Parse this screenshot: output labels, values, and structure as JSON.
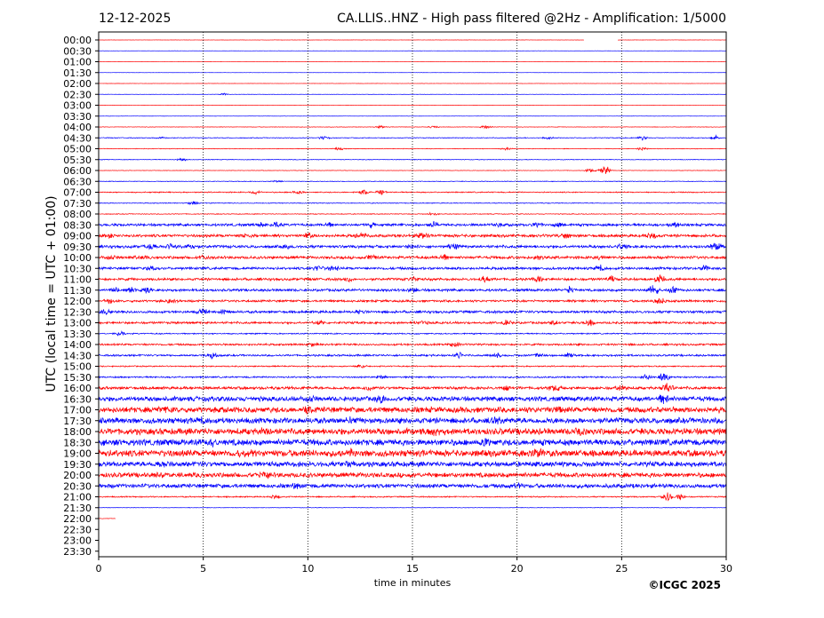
{
  "chart_data": {
    "type": "line",
    "subtype": "helicorder",
    "title_left": "12-12-2025",
    "title": "CA.LLIS..HNZ - High pass filtered @2Hz - Amplification: 1/5000",
    "xlabel": "time in minutes",
    "ylabel": "UTC (local time = UTC + 01:00)",
    "copyright": "©ICGC 2025",
    "xlim": [
      0,
      30
    ],
    "x_ticks": [
      0,
      5,
      10,
      15,
      20,
      25,
      30
    ],
    "x_tick_labels": [
      "0",
      "5",
      "10",
      "15",
      "20",
      "25",
      "30"
    ],
    "vertical_gridlines": [
      5,
      10,
      15,
      20,
      25
    ],
    "row_labels": [
      "00:00",
      "00:30",
      "01:00",
      "01:30",
      "02:00",
      "02:30",
      "03:00",
      "03:30",
      "04:00",
      "04:30",
      "05:00",
      "05:30",
      "06:00",
      "06:30",
      "07:00",
      "07:30",
      "08:00",
      "08:30",
      "09:00",
      "09:30",
      "10:00",
      "10:30",
      "11:00",
      "11:30",
      "12:00",
      "12:30",
      "13:00",
      "13:30",
      "14:00",
      "14:30",
      "15:00",
      "15:30",
      "16:00",
      "16:30",
      "17:00",
      "17:30",
      "18:00",
      "18:30",
      "19:00",
      "19:30",
      "20:00",
      "20:30",
      "21:00",
      "21:30",
      "22:00",
      "22:30",
      "23:00",
      "23:30"
    ],
    "series_colors": [
      "#ff0000",
      "#0000ff"
    ],
    "rows": [
      {
        "t": "00:00",
        "amp": 0.15,
        "end": 30,
        "gap": [
          23.2,
          24.8
        ]
      },
      {
        "t": "00:30",
        "amp": 0.12,
        "end": 30
      },
      {
        "t": "01:00",
        "amp": 0.12,
        "end": 30
      },
      {
        "t": "01:30",
        "amp": 0.12,
        "end": 30
      },
      {
        "t": "02:00",
        "amp": 0.15,
        "end": 30
      },
      {
        "t": "02:30",
        "amp": 0.2,
        "end": 30,
        "events": [
          [
            6,
            1.5
          ]
        ]
      },
      {
        "t": "03:00",
        "amp": 0.15,
        "end": 30
      },
      {
        "t": "03:30",
        "amp": 0.15,
        "end": 30
      },
      {
        "t": "04:00",
        "amp": 0.3,
        "end": 30,
        "events": [
          [
            13.5,
            2
          ],
          [
            16,
            2
          ],
          [
            18.5,
            3
          ]
        ]
      },
      {
        "t": "04:30",
        "amp": 0.5,
        "end": 30,
        "events": [
          [
            3,
            2
          ],
          [
            10.8,
            3
          ],
          [
            21.5,
            2
          ],
          [
            26,
            3
          ],
          [
            29.5,
            3
          ]
        ]
      },
      {
        "t": "05:00",
        "amp": 0.4,
        "end": 30,
        "events": [
          [
            11.5,
            2
          ],
          [
            19.5,
            2
          ],
          [
            26,
            2
          ]
        ]
      },
      {
        "t": "05:30",
        "amp": 0.4,
        "end": 30,
        "events": [
          [
            4,
            2
          ]
        ]
      },
      {
        "t": "06:00",
        "amp": 0.3,
        "end": 30,
        "events": [
          [
            23.5,
            3
          ],
          [
            24.2,
            8
          ]
        ]
      },
      {
        "t": "06:30",
        "amp": 0.4,
        "end": 30,
        "events": [
          [
            8.5,
            2
          ]
        ]
      },
      {
        "t": "07:00",
        "amp": 0.7,
        "end": 30,
        "events": [
          [
            7.5,
            3
          ],
          [
            9.5,
            3
          ],
          [
            12.7,
            4
          ],
          [
            13.5,
            4
          ]
        ]
      },
      {
        "t": "07:30",
        "amp": 0.5,
        "end": 30,
        "events": [
          [
            4.5,
            3
          ]
        ]
      },
      {
        "t": "08:00",
        "amp": 0.5,
        "end": 30,
        "events": [
          [
            16,
            3
          ]
        ]
      },
      {
        "t": "08:30",
        "amp": 1.6,
        "end": 30,
        "events": [
          [
            7.8,
            3
          ],
          [
            8.5,
            3
          ],
          [
            11,
            3
          ],
          [
            13,
            3
          ],
          [
            16,
            4
          ],
          [
            19,
            3
          ],
          [
            21,
            3
          ],
          [
            22,
            3
          ],
          [
            27.5,
            3
          ]
        ]
      },
      {
        "t": "09:00",
        "amp": 1.8,
        "end": 30,
        "events": [
          [
            0.5,
            3
          ],
          [
            7,
            3
          ],
          [
            10,
            3
          ],
          [
            12.5,
            4
          ],
          [
            15.5,
            4
          ],
          [
            22.3,
            3
          ],
          [
            26.5,
            4
          ]
        ]
      },
      {
        "t": "09:30",
        "amp": 1.8,
        "end": 30,
        "events": [
          [
            2.5,
            4
          ],
          [
            3.5,
            4
          ],
          [
            4.3,
            4
          ],
          [
            9,
            3
          ],
          [
            15,
            3
          ],
          [
            17,
            4
          ],
          [
            25,
            3
          ],
          [
            29.5,
            5
          ]
        ]
      },
      {
        "t": "10:00",
        "amp": 1.8,
        "end": 30,
        "events": [
          [
            0.5,
            3
          ],
          [
            2,
            3
          ],
          [
            5,
            3
          ],
          [
            13,
            3
          ],
          [
            16.5,
            4
          ],
          [
            21,
            3
          ],
          [
            24,
            3
          ]
        ]
      },
      {
        "t": "10:30",
        "amp": 1.6,
        "end": 30,
        "events": [
          [
            2.5,
            3
          ],
          [
            10.5,
            4
          ],
          [
            11.2,
            4
          ],
          [
            24,
            4
          ],
          [
            29,
            3
          ]
        ]
      },
      {
        "t": "11:00",
        "amp": 1.6,
        "end": 30,
        "events": [
          [
            12,
            3
          ],
          [
            15,
            3
          ],
          [
            18.5,
            4
          ],
          [
            21,
            4
          ],
          [
            24.5,
            4
          ],
          [
            26.8,
            6
          ]
        ]
      },
      {
        "t": "11:30",
        "amp": 1.6,
        "end": 30,
        "events": [
          [
            0.8,
            4
          ],
          [
            1.5,
            4
          ],
          [
            2.3,
            3
          ],
          [
            15,
            3
          ],
          [
            22.5,
            4
          ],
          [
            26.5,
            8
          ],
          [
            27.5,
            5
          ]
        ]
      },
      {
        "t": "12:00",
        "amp": 1.4,
        "end": 30,
        "events": [
          [
            0.5,
            3
          ],
          [
            3.5,
            3
          ],
          [
            26.8,
            6
          ]
        ]
      },
      {
        "t": "12:30",
        "amp": 1.6,
        "end": 30,
        "events": [
          [
            0.3,
            3
          ],
          [
            5,
            3
          ],
          [
            6,
            3
          ],
          [
            12.5,
            3
          ]
        ]
      },
      {
        "t": "13:00",
        "amp": 1.4,
        "end": 30,
        "events": [
          [
            10.5,
            3
          ],
          [
            15.5,
            3
          ],
          [
            19.5,
            3
          ],
          [
            21.7,
            4
          ],
          [
            23.5,
            4
          ]
        ]
      },
      {
        "t": "13:30",
        "amp": 0.8,
        "end": 30,
        "events": [
          [
            1,
            3
          ]
        ]
      },
      {
        "t": "14:00",
        "amp": 1.2,
        "end": 30,
        "events": [
          [
            10.2,
            3
          ],
          [
            17,
            4
          ]
        ]
      },
      {
        "t": "14:30",
        "amp": 1.2,
        "end": 30,
        "events": [
          [
            5.4,
            5
          ],
          [
            17.2,
            4
          ],
          [
            19,
            4
          ],
          [
            21,
            3
          ],
          [
            22.5,
            3
          ]
        ]
      },
      {
        "t": "15:00",
        "amp": 0.8,
        "end": 30,
        "events": [
          [
            12.5,
            3
          ]
        ]
      },
      {
        "t": "15:30",
        "amp": 1.0,
        "end": 30,
        "events": [
          [
            13.5,
            3
          ],
          [
            26.2,
            4
          ],
          [
            27,
            8
          ]
        ]
      },
      {
        "t": "16:00",
        "amp": 1.8,
        "end": 30,
        "events": [
          [
            13,
            3
          ],
          [
            19.5,
            3
          ],
          [
            21.8,
            4
          ],
          [
            25,
            4
          ],
          [
            27.2,
            8
          ]
        ]
      },
      {
        "t": "16:30",
        "amp": 3.0,
        "end": 30,
        "events": [
          [
            10,
            4
          ],
          [
            13.5,
            4
          ],
          [
            27,
            6
          ]
        ]
      },
      {
        "t": "17:00",
        "amp": 3.6,
        "end": 30,
        "events": [
          [
            3,
            3
          ],
          [
            10,
            3
          ],
          [
            22,
            3
          ]
        ]
      },
      {
        "t": "17:30",
        "amp": 3.6,
        "end": 30,
        "events": [
          [
            5,
            3
          ],
          [
            12,
            3
          ],
          [
            19,
            3
          ]
        ]
      },
      {
        "t": "18:00",
        "amp": 4.0,
        "end": 30,
        "events": [
          [
            8,
            3
          ],
          [
            16,
            3
          ],
          [
            23,
            3
          ]
        ]
      },
      {
        "t": "18:30",
        "amp": 4.0,
        "end": 30,
        "events": [
          [
            5.5,
            3
          ],
          [
            18.5,
            3
          ]
        ]
      },
      {
        "t": "19:00",
        "amp": 4.2,
        "end": 30,
        "events": [
          [
            7,
            3
          ],
          [
            12,
            3
          ],
          [
            21,
            3
          ]
        ]
      },
      {
        "t": "19:30",
        "amp": 3.2,
        "end": 30,
        "events": [
          [
            3,
            3
          ],
          [
            12,
            3
          ]
        ]
      },
      {
        "t": "20:00",
        "amp": 3.0,
        "end": 30,
        "events": [
          [
            3,
            3
          ],
          [
            8,
            3
          ]
        ]
      },
      {
        "t": "20:30",
        "amp": 2.6,
        "end": 30,
        "events": [
          [
            9.5,
            3
          ],
          [
            20,
            3
          ]
        ]
      },
      {
        "t": "21:00",
        "amp": 0.8,
        "end": 30,
        "events": [
          [
            8.5,
            3
          ],
          [
            27.2,
            8
          ],
          [
            27.8,
            5
          ]
        ]
      },
      {
        "t": "21:30",
        "amp": 0.3,
        "end": 30
      },
      {
        "t": "22:00",
        "amp": 0.3,
        "end": 0.8
      },
      {
        "t": "22:30",
        "amp": 0,
        "end": 0
      },
      {
        "t": "23:00",
        "amp": 0,
        "end": 0
      },
      {
        "t": "23:30",
        "amp": 0,
        "end": 0
      }
    ]
  }
}
